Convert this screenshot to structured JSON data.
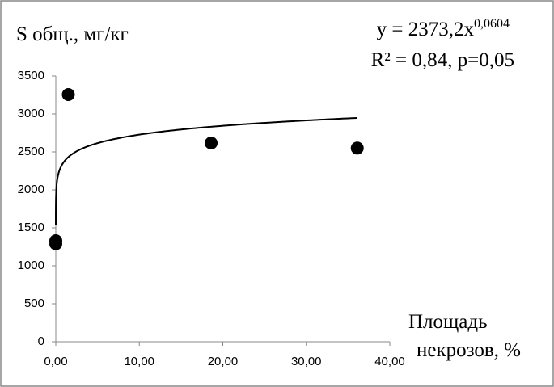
{
  "chart_data": {
    "type": "scatter",
    "y_label": "S общ., мг/кг",
    "x_label": [
      "Площадь",
      "некрозов,  %"
    ],
    "equation": {
      "text": "y = 2373,2x",
      "exponent_text": "0,0604",
      "stats": "R² = 0,84, p=0,05"
    },
    "trendline": {
      "type": "power",
      "coefficient": 2373.2,
      "exponent": 0.0604
    },
    "series": [
      {
        "name": "S",
        "color": "#000000",
        "x": [
          0,
          0,
          1.5,
          18.6,
          36.1
        ],
        "values": [
          1330,
          1290,
          3255,
          2617,
          2550
        ]
      }
    ],
    "xlim": [
      0,
      40
    ],
    "xticks": [
      {
        "value": 0,
        "label": "0,00"
      },
      {
        "value": 10,
        "label": "10,00"
      },
      {
        "value": 20,
        "label": "20,00"
      },
      {
        "value": 30,
        "label": "30,00"
      },
      {
        "value": 40,
        "label": "40,00"
      }
    ],
    "ylim": [
      0,
      3500
    ],
    "yticks": [
      0,
      500,
      1000,
      1500,
      2000,
      2500,
      3000,
      3500
    ],
    "grid": false
  }
}
